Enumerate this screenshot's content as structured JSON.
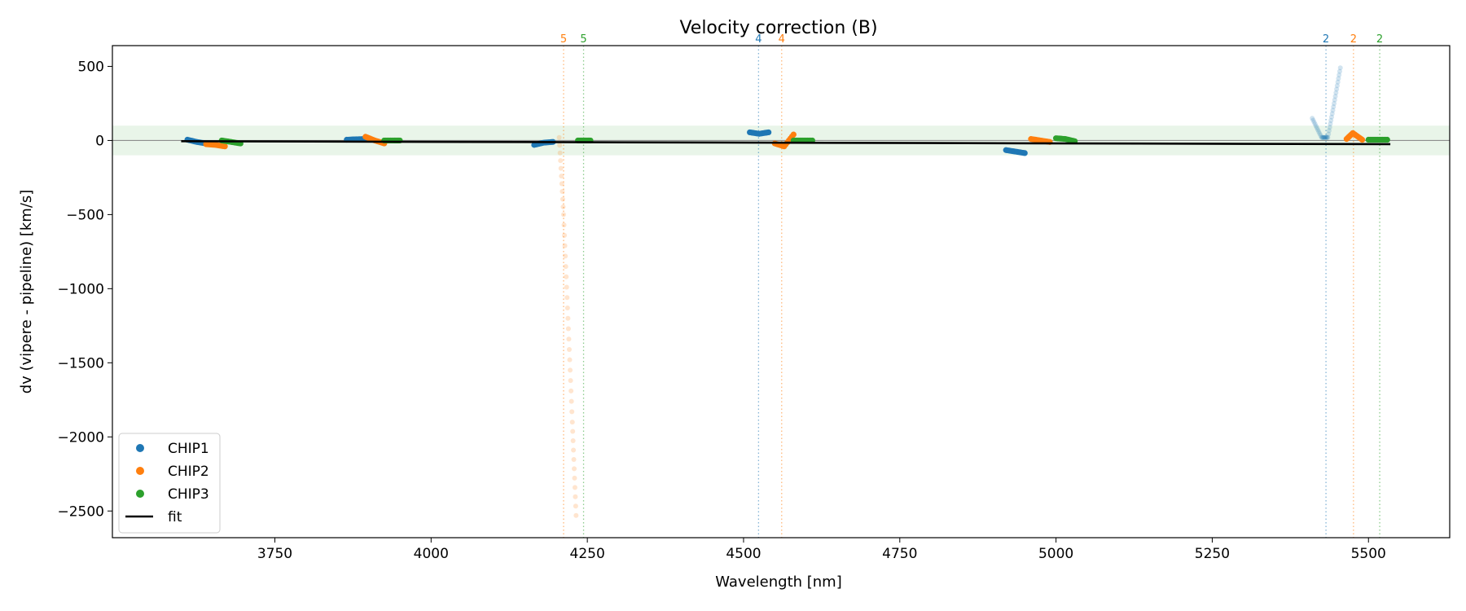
{
  "chart_data": {
    "type": "scatter",
    "title": "Velocity correction (B)",
    "xlabel": "Wavelength [nm]",
    "ylabel": "dv (vipere - pipeline) [km/s]",
    "xlim": [
      3490,
      5630
    ],
    "ylim": [
      -2680,
      640
    ],
    "xticks": [
      3750,
      4000,
      4250,
      4500,
      4750,
      5000,
      5250,
      5500
    ],
    "xtick_labels": [
      "3750",
      "4000",
      "4250",
      "4500",
      "4750",
      "5000",
      "5250",
      "5500"
    ],
    "yticks": [
      500,
      0,
      -500,
      -1000,
      -1500,
      -2000,
      -2500
    ],
    "ytick_labels": [
      "500",
      "0",
      "−500",
      "−1000",
      "−1500",
      "−2000",
      "−2500"
    ],
    "band": [
      -100,
      100
    ],
    "legend_position": "lower-left",
    "colors": {
      "CHIP1": "#1f77b4",
      "CHIP2": "#ff7f0e",
      "CHIP3": "#2ca02c",
      "fit": "#000000",
      "band": "#2ca02c",
      "zero": "#808080"
    },
    "series": [
      {
        "name": "CHIP1",
        "segments": [
          {
            "x": [
              3610,
              3625,
              3640,
              3655
            ],
            "y": [
              5,
              -10,
              -20,
              -25
            ]
          },
          {
            "x": [
              3865,
              3880,
              3895
            ],
            "y": [
              5,
              8,
              10
            ]
          },
          {
            "x": [
              4165,
              4180,
              4195
            ],
            "y": [
              -30,
              -15,
              -10
            ]
          },
          {
            "x": [
              4510,
              4525,
              4540
            ],
            "y": [
              55,
              45,
              55
            ]
          },
          {
            "x": [
              4920,
              4935,
              4950
            ],
            "y": [
              -65,
              -75,
              -85
            ]
          },
          {
            "x": [
              5410,
              5425,
              5435,
              5445,
              5455
            ],
            "y": [
              150,
              20,
              20,
              250,
              490
            ],
            "faint": true
          }
        ]
      },
      {
        "name": "CHIP2",
        "segments": [
          {
            "x": [
              3640,
              3655,
              3670
            ],
            "y": [
              -25,
              -30,
              -40
            ]
          },
          {
            "x": [
              3895,
              3910,
              3925
            ],
            "y": [
              25,
              0,
              -20
            ]
          },
          {
            "x": [
              4205,
              4212,
              4219,
              4226,
              4232
            ],
            "y": [
              20,
              -500,
              -1200,
              -1900,
              -2530
            ],
            "faint": true
          },
          {
            "x": [
              4550,
              4565,
              4580
            ],
            "y": [
              -20,
              -40,
              40
            ]
          },
          {
            "x": [
              4960,
              4975,
              4990
            ],
            "y": [
              10,
              0,
              -10
            ]
          },
          {
            "x": [
              5465,
              5475,
              5490
            ],
            "y": [
              10,
              50,
              5
            ]
          }
        ]
      },
      {
        "name": "CHIP3",
        "segments": [
          {
            "x": [
              3665,
              3680,
              3695
            ],
            "y": [
              0,
              -10,
              -20
            ]
          },
          {
            "x": [
              3925,
              3940,
              3950
            ],
            "y": [
              0,
              0,
              0
            ]
          },
          {
            "x": [
              4235,
              4245,
              4255
            ],
            "y": [
              0,
              0,
              0
            ]
          },
          {
            "x": [
              4580,
              4595,
              4610
            ],
            "y": [
              0,
              0,
              0
            ]
          },
          {
            "x": [
              5000,
              5015,
              5030
            ],
            "y": [
              15,
              10,
              -5
            ]
          },
          {
            "x": [
              5500,
              5515,
              5530
            ],
            "y": [
              5,
              5,
              5
            ]
          }
        ]
      },
      {
        "name": "fit",
        "x": [
          3600,
          5535
        ],
        "y": [
          -5,
          -25
        ]
      }
    ],
    "markers": [
      {
        "x": 4212,
        "label": "5",
        "color": "#ff7f0e"
      },
      {
        "x": 4244,
        "label": "5",
        "color": "#2ca02c"
      },
      {
        "x": 4524,
        "label": "4",
        "color": "#1f77b4"
      },
      {
        "x": 4561,
        "label": "4",
        "color": "#ff7f0e"
      },
      {
        "x": 5432,
        "label": "2",
        "color": "#1f77b4"
      },
      {
        "x": 5476,
        "label": "2",
        "color": "#ff7f0e"
      },
      {
        "x": 5518,
        "label": "2",
        "color": "#2ca02c"
      }
    ],
    "legend": [
      "CHIP1",
      "CHIP2",
      "CHIP3",
      "fit"
    ]
  }
}
